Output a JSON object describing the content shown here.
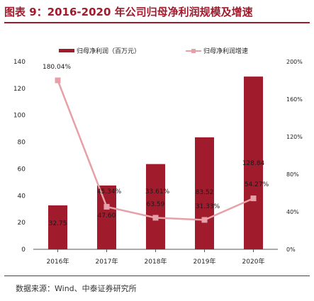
{
  "title": "图表 9：2016-2020 年公司归母净利润规模及增速",
  "source": "数据来源：Wind、中泰证券研究所",
  "colors": {
    "bar": "#a01b2c",
    "line": "#e6a0a8",
    "marker": "#e6a0a8",
    "title": "#a01b2c"
  },
  "chart_data": {
    "type": "bar+line",
    "categories": [
      "2016年",
      "2017年",
      "2018年",
      "2019年",
      "2020年"
    ],
    "series": [
      {
        "name": "归母净利润（百万元）",
        "type": "bar",
        "axis": "left",
        "values": [
          32.75,
          47.6,
          63.59,
          83.52,
          128.84
        ],
        "labels": [
          "32.75",
          "47.60",
          "63.59",
          "83.52",
          "128.84"
        ]
      },
      {
        "name": "归母净利润增速",
        "type": "line",
        "axis": "right",
        "values": [
          180.04,
          45.34,
          33.61,
          31.33,
          54.27
        ],
        "labels": [
          "180.04%",
          "45.34%",
          "33.61%",
          "31.33%",
          "54.27%"
        ]
      }
    ],
    "y_left": {
      "min": 0,
      "max": 140,
      "ticks": [
        "0",
        "20",
        "40",
        "60",
        "80",
        "100",
        "120",
        "140"
      ]
    },
    "y_right": {
      "min": 0,
      "max": 200,
      "ticks": [
        "0%",
        "40%",
        "80%",
        "120%",
        "160%",
        "200%"
      ]
    },
    "legend_position": "top",
    "grid": false
  }
}
